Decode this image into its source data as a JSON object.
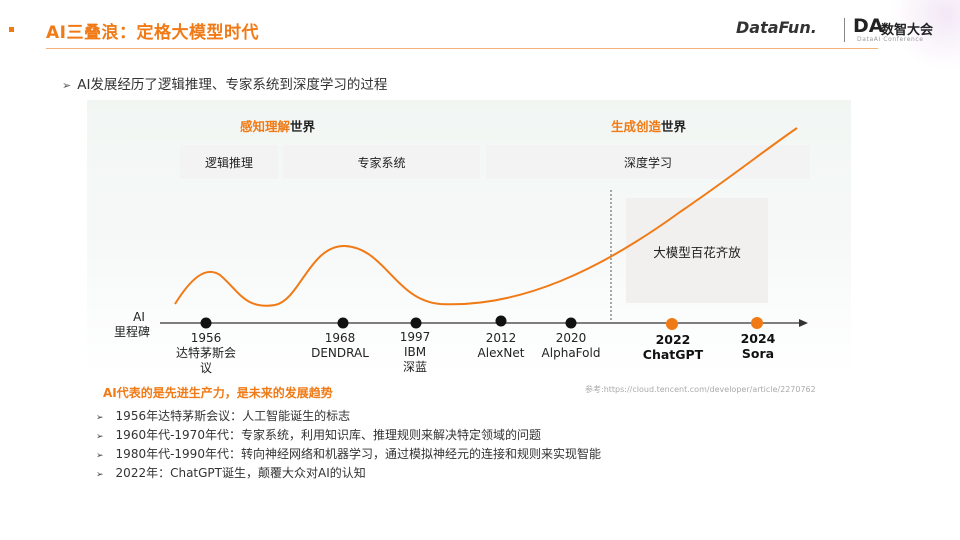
{
  "header": {
    "title": "AI三叠浪：定格大模型时代",
    "logo_datafun": "DataFun.",
    "logo_da": "DA",
    "logo_cn": "数智大会",
    "logo_sub": "DataAI Conference"
  },
  "subtitle": "AI发展经历了逻辑推理、专家系统到深度学习的过程",
  "worlds": [
    {
      "highlight": "感知理解",
      "suffix": "世界"
    },
    {
      "highlight": "生成创造",
      "suffix": "世界"
    }
  ],
  "eras": [
    "逻辑推理",
    "专家系统",
    "深度学习"
  ],
  "boom_label": "大模型百花齐放",
  "axis_label": [
    "AI",
    "里程碑"
  ],
  "milestones": [
    {
      "lines": [
        "1956",
        "达特茅斯会",
        "议"
      ],
      "highlight": false
    },
    {
      "lines": [
        "1968",
        "DENDRAL"
      ],
      "highlight": false
    },
    {
      "lines": [
        "1997",
        "IBM",
        "深蓝"
      ],
      "highlight": false
    },
    {
      "lines": [
        "2012",
        "AlexNet"
      ],
      "highlight": false
    },
    {
      "lines": [
        "2020",
        "AlphaFold"
      ],
      "highlight": false
    },
    {
      "lines": [
        "2022",
        "ChatGPT"
      ],
      "highlight": true
    },
    {
      "lines": [
        "2024",
        "Sora"
      ],
      "highlight": true
    }
  ],
  "slogan": "AI代表的是先进生产力，是未来的发展趋势",
  "reference": "参考:https://cloud.tencent.com/developer/article/2270762",
  "notes": [
    "1956年达特茅斯会议：人工智能诞生的标志",
    "1960年代-1970年代：专家系统，利用知识库、推理规则来解决特定领域的问题",
    "1980年代-1990年代：转向神经网络和机器学习，通过模拟神经元的连接和规则来实现智能",
    "2022年：ChatGPT诞生，颠覆大众对AI的认知"
  ],
  "colors": {
    "accent": "#f07a16",
    "dot": "#111111"
  },
  "icons": {
    "bullet": "square-bullet-icon",
    "list": "arrow-bullet-icon"
  }
}
